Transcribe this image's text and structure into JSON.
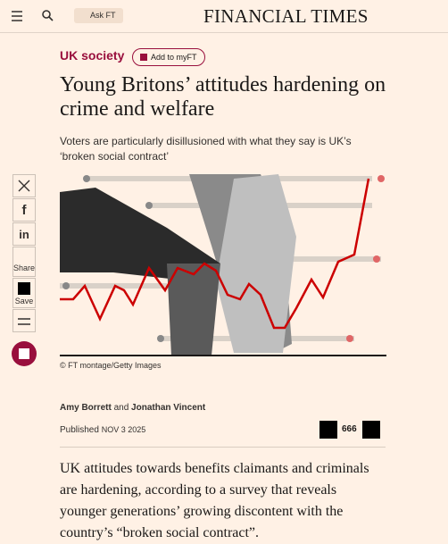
{
  "header": {
    "ask": "Ask FT",
    "brand": "FINANCIAL TIMES"
  },
  "article": {
    "section": "UK society",
    "follow": "Add to myFT",
    "title": "Young Britons’ attitudes hardening on crime and welfare",
    "subtitle": "Voters are particularly disillusioned with what they say is UK’s ‘broken social contract’",
    "caption": "© FT montage/Getty Images",
    "authors": [
      "Amy Borrett",
      "Jonathan Vincent"
    ],
    "author_joiner": "and",
    "published_label": "Published",
    "published_date": "NOV 3 2025",
    "comments": "666",
    "body": "UK attitudes towards benefits claimants and criminals are hardening, according to a survey that reveals younger generations’ growing discontent with the country’s “broken social contract”."
  },
  "share": {
    "facebook": "f",
    "linkedin": "in",
    "share": "Share",
    "save": "Save"
  }
}
